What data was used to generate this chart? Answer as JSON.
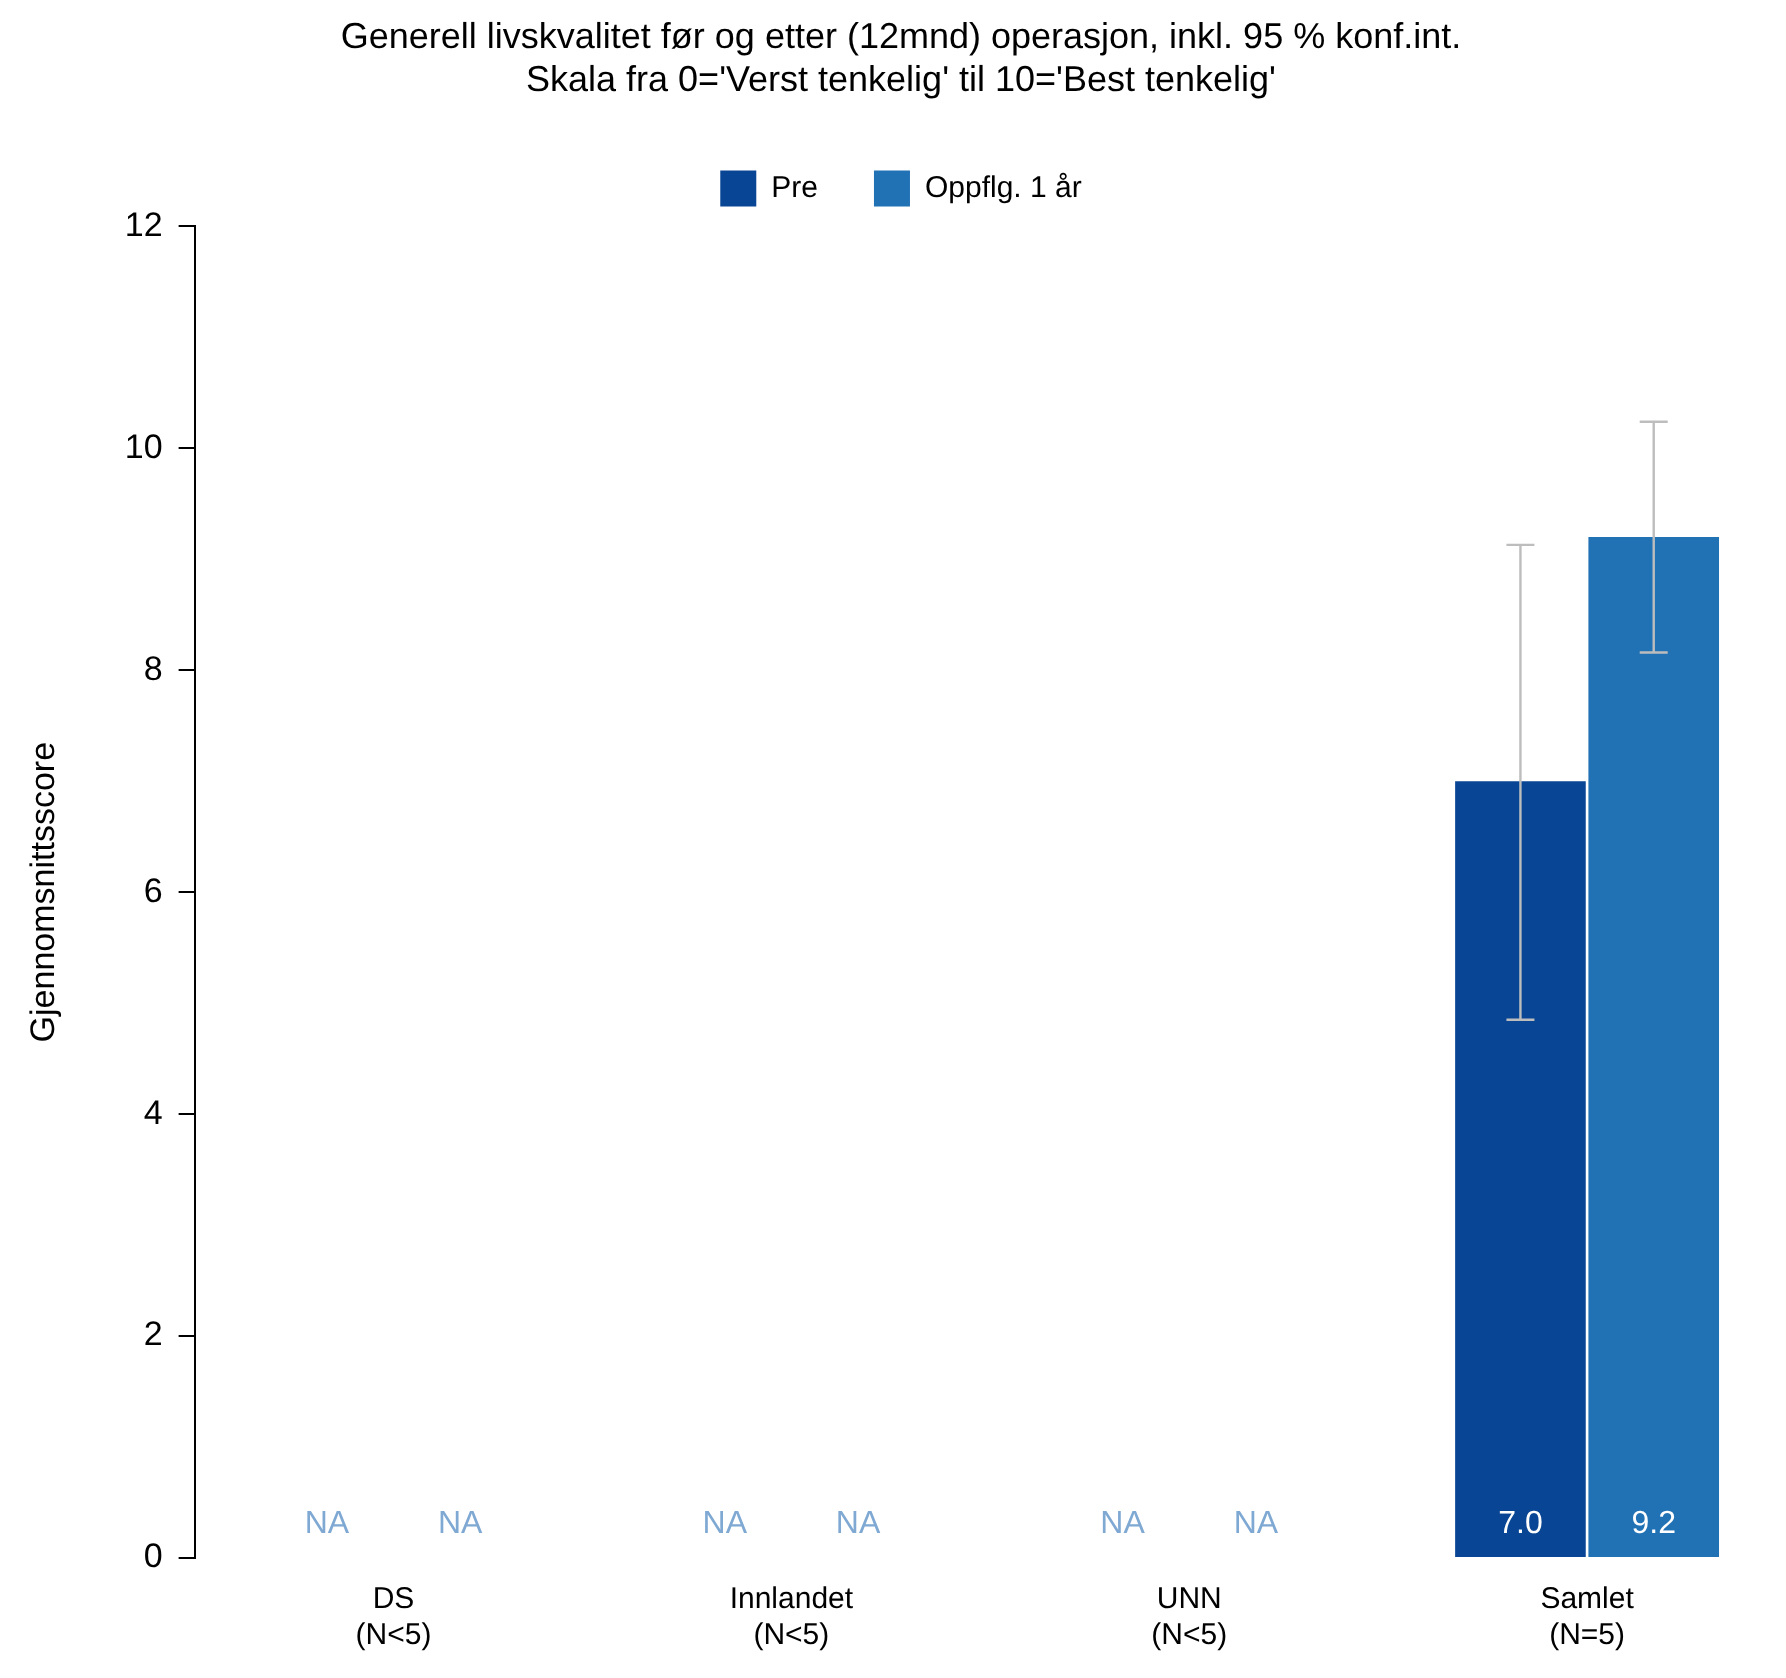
{
  "chart_data": {
    "type": "bar",
    "title": "Generell livskvalitet før og etter (12mnd) operasjon, inkl. 95 % konf.int.",
    "subtitle": "Skala fra 0='Verst tenkelig' til 10='Best tenkelig'",
    "ylabel": "Gjennomsnittsscore",
    "categories": [
      "DS\n(N<5)",
      "Innlandet\n(N<5)",
      "UNN\n(N<5)",
      "Samlet\n(N=5)"
    ],
    "series": [
      {
        "name": "Pre",
        "color": "#084594",
        "values": [
          null,
          null,
          null,
          7.0
        ],
        "errors": [
          null,
          null,
          null,
          [
            4.85,
            9.13
          ]
        ],
        "value_labels": [
          "NA",
          "NA",
          "NA",
          "7.0"
        ]
      },
      {
        "name": "Oppflg. 1 år",
        "color": "#2171b5",
        "values": [
          null,
          null,
          null,
          9.2
        ],
        "errors": [
          null,
          null,
          null,
          [
            8.16,
            10.24
          ]
        ],
        "value_labels": [
          "NA",
          "NA",
          "NA",
          "9.2"
        ]
      }
    ],
    "ylim": [
      0,
      12
    ],
    "yticks": [
      0,
      2,
      4,
      6,
      8,
      10,
      12
    ],
    "grid": false,
    "legend": "top"
  }
}
